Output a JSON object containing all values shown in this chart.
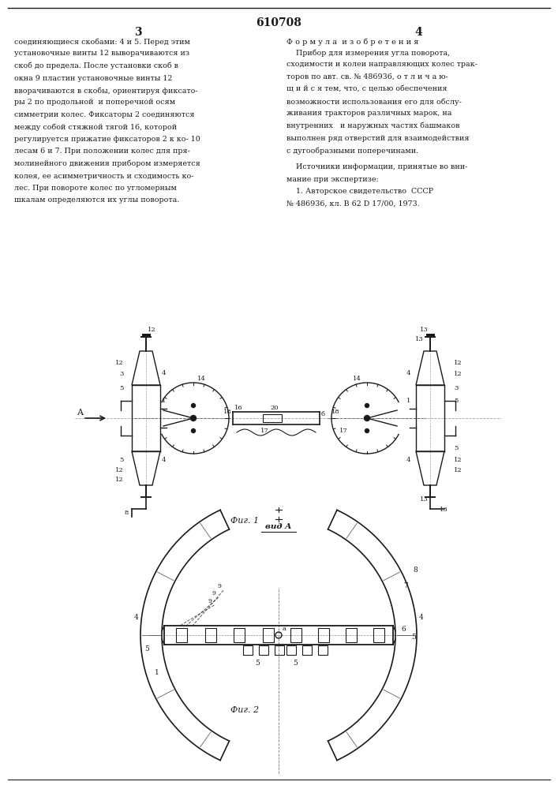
{
  "patent_number": "610708",
  "page_left": "3",
  "page_right": "4",
  "background_color": "#ffffff",
  "text_color": "#1a1a1a",
  "line_color": "#1a1a1a",
  "left_text_lines": [
    "соединяющиеся скобами: 4 и 5. Перед этим",
    "установочные винты 12 выворачиваются из",
    "скоб до предела. После установки скоб в",
    "окна 9 пластин установочные винты 12",
    "вворачиваются в скобы, ориентируя фиксато-",
    "ры 2 по продольной  и поперечной осям",
    "симметрии колес. Фиксаторы 2 соединяются",
    "между собой стяжной тягой 16, которой",
    "регулируется прижатие фиксаторов 2 к ко- 10",
    "лесам 6 и 7. При положении колес для пря-",
    "молинейного движения прибором измеряется",
    "колея, ее асимметричность и сходимость ко-",
    "лес. При повороте колес по угломерным",
    "шкалам определяются их углы поворота."
  ],
  "right_heading": "Ф о р м у л а  и з о б р е т е н и я",
  "right_text_lines": [
    "    Прибор для измерения угла поворота,",
    "сходимости и колеи направляющих колес трак-",
    "торов по авт. св. № 486936, о т л и ч а ю-",
    "щ и й с я тем, что, с целью обеспечения",
    "возможности использования его для обслу-",
    "живания тракторов различных марок, на",
    "внутренних   и наружных частях башмаков",
    "выполнен ряд отверстий для взаимодействия",
    "с дугообразными поперечинами."
  ],
  "sources_lines": [
    "    Источники информации, принятые во вни-",
    "мание при экспертизе:",
    "    1. Авторское свидетельство  СССР",
    "№ 486936, кл. В 62 D 17/00, 1973."
  ],
  "fig1_caption": "Фиг. 1",
  "fig2_caption": "Фиг. 2",
  "vid_caption": "вид A"
}
